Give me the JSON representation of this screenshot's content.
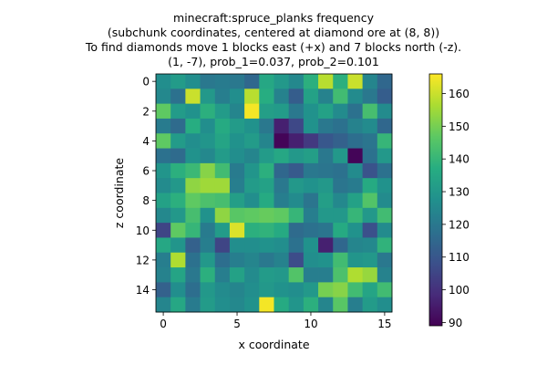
{
  "chart_data": {
    "type": "heatmap",
    "title_lines": [
      "minecraft:spruce_planks frequency",
      "(subchunk coordinates, centered at diamond ore at (8, 8))",
      "To find diamonds move 1 blocks east (+x) and 7 blocks north (-z).",
      "(1, -7), prob_1=0.037, prob_2=0.101"
    ],
    "xlabel": "x coordinate",
    "ylabel": "z coordinate",
    "x_ticks": [
      0,
      5,
      10,
      15
    ],
    "y_ticks": [
      0,
      2,
      4,
      6,
      8,
      10,
      12,
      14
    ],
    "grid_size": 16,
    "colormap": "viridis",
    "colorbar": {
      "min": 89,
      "max": 166,
      "ticks": [
        90,
        100,
        110,
        120,
        130,
        140,
        150,
        160
      ]
    },
    "values": [
      [
        127,
        131,
        127,
        120,
        121,
        120,
        115,
        135,
        130,
        125,
        138,
        158,
        138,
        160,
        124,
        115
      ],
      [
        125,
        118,
        160,
        130,
        122,
        127,
        158,
        137,
        123,
        112,
        133,
        123,
        142,
        126,
        120,
        112
      ],
      [
        147,
        131,
        128,
        138,
        131,
        124,
        165,
        132,
        131,
        120,
        128,
        133,
        126,
        118,
        143,
        126
      ],
      [
        121,
        116,
        137,
        127,
        136,
        131,
        128,
        120,
        96,
        106,
        128,
        120,
        118,
        123,
        126,
        115
      ],
      [
        147,
        131,
        127,
        129,
        134,
        128,
        131,
        124,
        90,
        96,
        102,
        110,
        113,
        117,
        119,
        140
      ],
      [
        118,
        116,
        128,
        125,
        131,
        127,
        124,
        131,
        135,
        130,
        132,
        120,
        130,
        90,
        118,
        130
      ],
      [
        129,
        138,
        141,
        152,
        142,
        121,
        129,
        138,
        115,
        111,
        120,
        119,
        118,
        126,
        109,
        118
      ],
      [
        126,
        130,
        153,
        155,
        155,
        122,
        131,
        133,
        120,
        130,
        128,
        130,
        119,
        121,
        136,
        128
      ],
      [
        133,
        138,
        147,
        144,
        143,
        132,
        127,
        136,
        122,
        126,
        119,
        132,
        125,
        133,
        145,
        126
      ],
      [
        125,
        130,
        143,
        128,
        153,
        146,
        147,
        148,
        147,
        140,
        122,
        130,
        130,
        140,
        130,
        142
      ],
      [
        105,
        147,
        140,
        121,
        131,
        162,
        138,
        139,
        136,
        116,
        118,
        119,
        136,
        128,
        108,
        126
      ],
      [
        135,
        129,
        113,
        122,
        105,
        127,
        127,
        128,
        127,
        118,
        128,
        96,
        115,
        124,
        125,
        139
      ],
      [
        122,
        157,
        118,
        130,
        117,
        122,
        124,
        120,
        123,
        107,
        127,
        128,
        142,
        129,
        130,
        120
      ],
      [
        123,
        134,
        120,
        138,
        122,
        133,
        126,
        131,
        130,
        145,
        122,
        122,
        144,
        157,
        154,
        123
      ],
      [
        113,
        127,
        117,
        130,
        126,
        124,
        127,
        130,
        128,
        127,
        130,
        150,
        152,
        142,
        134,
        142
      ],
      [
        124,
        135,
        121,
        131,
        127,
        125,
        128,
        165,
        136,
        129,
        138,
        124,
        146,
        122,
        131,
        127
      ]
    ]
  }
}
